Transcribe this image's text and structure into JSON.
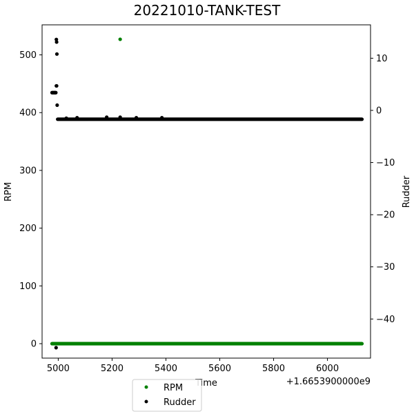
{
  "chart_data": {
    "type": "scatter",
    "title": "20221010-TANK-TEST",
    "xlabel": "Time",
    "x_offset_label": "+1.6653900000e9",
    "ylabel_left": "RPM",
    "ylabel_right": "Rudder",
    "xlim": [
      4940,
      6160
    ],
    "ylim_left": [
      -25,
      552
    ],
    "ylim_right": [
      -47.5,
      16.4
    ],
    "x_ticks": [
      5000,
      5200,
      5400,
      5600,
      5800,
      6000
    ],
    "y_ticks_left": [
      0,
      100,
      200,
      300,
      400,
      500
    ],
    "y_ticks_right": [
      10,
      0,
      -10,
      -20,
      -30,
      -40
    ],
    "x_tick_labels": [
      "5000",
      "5200",
      "5400",
      "5600",
      "5800",
      "6000"
    ],
    "y_tick_labels_left": [
      "0",
      "100",
      "200",
      "300",
      "400",
      "500"
    ],
    "y_tick_labels_right": [
      "10",
      "0",
      "−10",
      "−20",
      "−30",
      "−40"
    ],
    "grid": false,
    "legend_position": "bottom-center",
    "series": [
      {
        "name": "RPM",
        "axis": "left",
        "color": "#008000",
        "marker": "dot",
        "dense_range": {
          "x_start": 4977,
          "x_end": 6128,
          "y": 0
        },
        "points": [
          [
            5230,
            527
          ]
        ]
      },
      {
        "name": "Rudder",
        "axis": "right",
        "color": "#000000",
        "marker": "dot",
        "dense_range": {
          "x_start": 4998,
          "x_end": 6128,
          "y": -1.7
        },
        "points": [
          [
            4977,
            3.4
          ],
          [
            4980,
            3.4
          ],
          [
            4983,
            3.4
          ],
          [
            4986,
            3.4
          ],
          [
            4988,
            3.4
          ],
          [
            4991,
            3.4
          ],
          [
            4993,
            4.7
          ],
          [
            4994,
            4.7
          ],
          [
            4993,
            13.6
          ],
          [
            4994,
            13.1
          ],
          [
            4995,
            10.8
          ],
          [
            4996,
            1.0
          ],
          [
            4992,
            -45.5
          ],
          [
            5030,
            -1.5
          ],
          [
            5070,
            -1.4
          ],
          [
            5180,
            -1.3
          ],
          [
            5230,
            -1.3
          ],
          [
            5290,
            -1.4
          ],
          [
            5385,
            -1.4
          ]
        ]
      }
    ]
  }
}
